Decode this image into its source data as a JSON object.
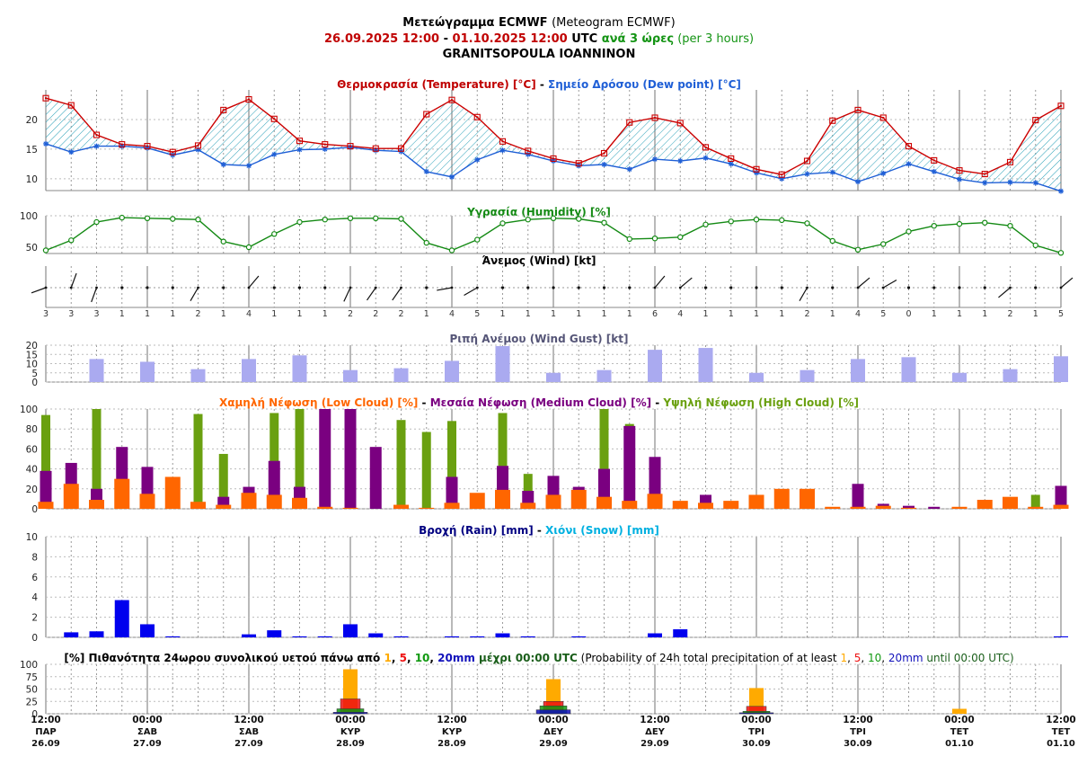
{
  "header": {
    "line1_bold": "Μετεώγραμμα ECMWF",
    "line1_normal": "(Meteogram ECMWF)",
    "line2_from": "26.09.2025 12:00",
    "line2_dash": " - ",
    "line2_to": "01.10.2025 12:00",
    "line2_utc": " UTC",
    "line2_step": " ανά 3 ώρες",
    "line2_step_en": " (per 3 hours)",
    "line3": "GRANITSOPOULA IOANNINON"
  },
  "colors": {
    "temperature": "#cc0000",
    "dew_point": "#1f5fd6",
    "humidity": "#148a14",
    "gust": "#aaaaf0",
    "low_cloud": "#ff6600",
    "medium_cloud": "#7a0080",
    "high_cloud": "#6aa010",
    "rain": "#0000ee",
    "snow": "#00b0e0",
    "p1": "#ffaa00",
    "p5": "#ee1111",
    "p10": "#119911",
    "p20": "#1111bb"
  },
  "chart_data": [
    {
      "id": "temperature",
      "type": "line",
      "title_parts": [
        {
          "text": "Θερμοκρασία (Temperature) [°C]",
          "color": "#c00000"
        },
        {
          "text": " - ",
          "color": "#000000"
        },
        {
          "text": "Σημείο Δρόσου (Dew point) [°C]",
          "color": "#1f5fd6"
        }
      ],
      "yticks": [
        "10",
        "15",
        "20"
      ],
      "ylim": [
        8,
        25
      ],
      "series": [
        {
          "name": "Θερμοκρασία (Temperature)",
          "values": [
            23.6,
            22.4,
            17.4,
            15.8,
            15.5,
            14.5,
            15.6,
            21.6,
            23.4,
            20.1,
            16.4,
            15.8,
            15.5,
            15.1,
            15.1,
            20.9,
            23.3,
            20.4,
            16.3,
            14.7,
            13.4,
            12.6,
            14.3,
            19.5,
            20.3,
            19.4,
            15.3,
            13.4,
            11.6,
            10.7,
            13.0,
            19.8,
            21.6,
            20.3,
            15.5,
            13.1,
            11.4,
            10.8,
            12.8,
            19.9,
            22.3
          ]
        },
        {
          "name": "Σημείο Δρόσου (Dew point)",
          "values": [
            15.9,
            14.5,
            15.5,
            15.5,
            15.2,
            14.0,
            14.9,
            12.4,
            12.2,
            14.1,
            14.9,
            15.0,
            15.3,
            14.8,
            14.6,
            11.2,
            10.3,
            13.2,
            14.8,
            14.1,
            13.0,
            12.2,
            12.4,
            11.6,
            13.3,
            13.0,
            13.5,
            12.5,
            11.0,
            10.0,
            10.8,
            11.1,
            9.5,
            10.9,
            12.5,
            11.2,
            9.9,
            9.3,
            9.4,
            9.3,
            7.9
          ]
        }
      ]
    },
    {
      "id": "humidity",
      "type": "line",
      "title_parts": [
        {
          "text": "Υγρασία (Humidity) [%]",
          "color": "#148a14"
        }
      ],
      "yticks": [
        "50",
        "100"
      ],
      "ylim": [
        40,
        100
      ],
      "series": [
        {
          "name": "Υγρασία (Humidity)",
          "values": [
            45,
            61,
            90,
            97,
            96,
            95,
            94,
            59,
            50,
            71,
            90,
            94,
            96,
            96,
            95,
            57,
            45,
            62,
            88,
            94,
            96,
            95,
            89,
            63,
            64,
            66,
            86,
            91,
            94,
            93,
            88,
            60,
            46,
            55,
            75,
            84,
            87,
            89,
            84,
            53,
            41
          ]
        }
      ]
    },
    {
      "id": "wind",
      "type": "scatter",
      "title_parts": [
        {
          "text": "Άνεμος (Wind) [kt]",
          "color": "#000000"
        }
      ],
      "labels": [
        "3",
        "3",
        "3",
        "1",
        "1",
        "1",
        "2",
        "1",
        "4",
        "1",
        "1",
        "1",
        "2",
        "2",
        "2",
        "1",
        "4",
        "5",
        "1",
        "1",
        "1",
        "1",
        "1",
        "1",
        "6",
        "4",
        "1",
        "1",
        "1",
        "1",
        "2",
        "1",
        "4",
        "5",
        "0",
        "1",
        "1",
        "1",
        "2",
        "1",
        "5"
      ],
      "direction_deg": [
        250,
        20,
        200,
        120,
        240,
        240,
        210,
        180,
        40,
        0,
        225,
        220,
        205,
        215,
        215,
        270,
        260,
        240,
        180,
        180,
        200,
        220,
        235,
        290,
        40,
        50,
        180,
        180,
        210,
        210,
        210,
        290,
        50,
        60,
        0,
        180,
        210,
        220,
        230,
        300,
        50
      ]
    },
    {
      "id": "gust",
      "type": "bar",
      "title_parts": [
        {
          "text": "Ριπή Ανέμου (Wind Gust) [kt]",
          "color": "#555577"
        }
      ],
      "yticks": [
        "0",
        "5",
        "10",
        "15",
        "20"
      ],
      "ylim": [
        0,
        20
      ],
      "series": [
        {
          "name": "Ριπή Ανέμου (Wind Gust)",
          "values": [
            0,
            0,
            12.5,
            0,
            11,
            0,
            7,
            0,
            12.5,
            0,
            14.5,
            0,
            6.5,
            0,
            7.5,
            0,
            11.5,
            0,
            19.5,
            0,
            5,
            0,
            6.5,
            0,
            17.5,
            0,
            18.5,
            0,
            5,
            0,
            6.5,
            0,
            12.5,
            0,
            13.5,
            0,
            5,
            0,
            7,
            0,
            14
          ]
        }
      ]
    },
    {
      "id": "cloud",
      "type": "bar",
      "title_parts": [
        {
          "text": "Χαμηλή Νέφωση (Low Cloud) [%]",
          "color": "#ff6600"
        },
        {
          "text": " - ",
          "color": "#000000"
        },
        {
          "text": "Μεσαία Νέφωση (Medium Cloud) [%]",
          "color": "#7a0080"
        },
        {
          "text": " - ",
          "color": "#000000"
        },
        {
          "text": "Υψηλή Νέφωση (High Cloud) [%]",
          "color": "#6aa010"
        }
      ],
      "yticks": [
        "0",
        "20",
        "40",
        "60",
        "80",
        "100"
      ],
      "ylim": [
        0,
        100
      ],
      "series": [
        {
          "name": "Υψηλή Νέφωση (High Cloud)",
          "values": [
            94,
            0,
            100,
            0,
            0,
            0,
            95,
            55,
            0,
            96,
            100,
            0,
            0,
            0,
            89,
            77,
            88,
            0,
            96,
            35,
            0,
            0,
            100,
            85,
            0,
            0,
            0,
            0,
            0,
            0,
            0,
            0,
            0,
            0,
            0,
            0,
            0,
            0,
            0,
            14,
            0
          ]
        },
        {
          "name": "Μεσαία Νέφωση (Medium Cloud)",
          "values": [
            38,
            46,
            20,
            62,
            42,
            0,
            0,
            12,
            22,
            48,
            22,
            100,
            100,
            62,
            0,
            0,
            32,
            0,
            43,
            18,
            33,
            22,
            40,
            83,
            52,
            0,
            14,
            0,
            0,
            0,
            5,
            0,
            25,
            5,
            3,
            2,
            0,
            0,
            0,
            0,
            23
          ]
        },
        {
          "name": "Χαμηλή Νέφωση (Low Cloud)",
          "values": [
            7,
            25,
            9,
            30,
            15,
            32,
            7,
            4,
            16,
            14,
            11,
            2,
            1,
            0,
            4,
            1,
            6,
            16,
            19,
            6,
            14,
            19,
            12,
            8,
            15,
            8,
            6,
            8,
            14,
            20,
            20,
            2,
            2,
            3,
            1,
            0,
            2,
            9,
            12,
            2,
            4
          ]
        }
      ]
    },
    {
      "id": "precip",
      "type": "bar",
      "title_parts": [
        {
          "text": "Βροχή (Rain) [mm]",
          "color": "#000080"
        },
        {
          "text": " - ",
          "color": "#000000"
        },
        {
          "text": "Χιόνι (Snow) [mm]",
          "color": "#00b0e0"
        }
      ],
      "yticks": [
        "0",
        "2",
        "4",
        "6",
        "8",
        "10"
      ],
      "ylim": [
        0,
        10
      ],
      "series": [
        {
          "name": "Βροχή (Rain)",
          "values": [
            0,
            0.5,
            0.6,
            3.7,
            1.3,
            0.1,
            0,
            0,
            0.3,
            0.7,
            0.1,
            0.1,
            1.3,
            0.4,
            0.1,
            0,
            0.1,
            0.1,
            0.4,
            0.1,
            0,
            0.1,
            0,
            0,
            0.4,
            0.8,
            0,
            0,
            0,
            0,
            0,
            0,
            0,
            0,
            0,
            0,
            0,
            0,
            0,
            0,
            0.1
          ]
        },
        {
          "name": "Χιόνι (Snow)",
          "values": [
            0,
            0,
            0,
            0,
            0,
            0,
            0,
            0,
            0,
            0,
            0,
            0,
            0,
            0,
            0,
            0,
            0,
            0,
            0,
            0,
            0,
            0,
            0,
            0,
            0,
            0,
            0,
            0,
            0,
            0,
            0,
            0,
            0,
            0,
            0,
            0,
            0,
            0,
            0,
            0,
            0
          ]
        }
      ]
    },
    {
      "id": "probability",
      "type": "bar",
      "title_parts": [
        {
          "text": "[%] Πιθανότητα 24ωρου συνολικού υετού πάνω από ",
          "color": "#000000",
          "bold": true
        },
        {
          "text": "1",
          "color": "#ffaa00",
          "bold": true
        },
        {
          "text": ", ",
          "color": "#000000",
          "bold": true
        },
        {
          "text": "5",
          "color": "#ee1111",
          "bold": true
        },
        {
          "text": ", ",
          "color": "#000000",
          "bold": true
        },
        {
          "text": "10",
          "color": "#119911",
          "bold": true
        },
        {
          "text": ", ",
          "color": "#000000",
          "bold": true
        },
        {
          "text": "20mm",
          "color": "#1111bb",
          "bold": true
        },
        {
          "text": " μέχρι 00:00 UTC",
          "color": "#1a5e1a",
          "bold": true
        },
        {
          "text": " (Probability of 24h total precipitation of at least ",
          "color": "#000000",
          "bold": false
        },
        {
          "text": "1",
          "color": "#ffaa00",
          "bold": false
        },
        {
          "text": ", ",
          "color": "#000000",
          "bold": false
        },
        {
          "text": "5",
          "color": "#ee1111",
          "bold": false
        },
        {
          "text": ", ",
          "color": "#000000",
          "bold": false
        },
        {
          "text": "10",
          "color": "#119911",
          "bold": false
        },
        {
          "text": ", ",
          "color": "#000000",
          "bold": false
        },
        {
          "text": "20mm",
          "color": "#1111bb",
          "bold": false
        },
        {
          "text": " until 00:00 UTC)",
          "color": "#1a5e1a",
          "bold": false
        }
      ],
      "yticks": [
        "0",
        "25",
        "50",
        "75",
        "100"
      ],
      "ylim": [
        0,
        100
      ],
      "categories": [
        "28.09 00:00",
        "29.09 00:00",
        "30.09 00:00",
        "01.10 00:00"
      ],
      "series": [
        {
          "name": "1mm",
          "values": [
            90,
            70,
            52,
            10
          ]
        },
        {
          "name": "5mm",
          "values": [
            30,
            25,
            15,
            0
          ]
        },
        {
          "name": "10mm",
          "values": [
            10,
            16,
            5,
            0
          ]
        },
        {
          "name": "20mm",
          "values": [
            3,
            8,
            2,
            0
          ]
        }
      ]
    }
  ],
  "x_axis": {
    "ticks": [
      {
        "time": "12:00",
        "day": "ΠΑΡ",
        "date": "26.09"
      },
      {
        "time": "00:00",
        "day": "ΣΑΒ",
        "date": "27.09"
      },
      {
        "time": "12:00",
        "day": "ΣΑΒ",
        "date": "27.09"
      },
      {
        "time": "00:00",
        "day": "ΚΥΡ",
        "date": "28.09"
      },
      {
        "time": "12:00",
        "day": "ΚΥΡ",
        "date": "28.09"
      },
      {
        "time": "00:00",
        "day": "ΔΕΥ",
        "date": "29.09"
      },
      {
        "time": "12:00",
        "day": "ΔΕΥ",
        "date": "29.09"
      },
      {
        "time": "00:00",
        "day": "ΤΡΙ",
        "date": "30.09"
      },
      {
        "time": "12:00",
        "day": "ΤΡΙ",
        "date": "30.09"
      },
      {
        "time": "00:00",
        "day": "ΤΕΤ",
        "date": "01.10"
      },
      {
        "time": "12:00",
        "day": "ΤΕΤ",
        "date": "01.10"
      }
    ]
  }
}
